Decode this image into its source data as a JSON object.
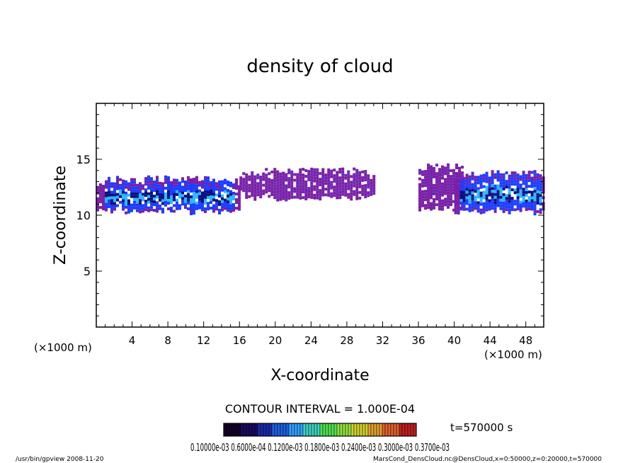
{
  "chart_data": {
    "type": "heatmap",
    "title": "density of cloud",
    "xlabel": "X-coordinate",
    "ylabel": "Z-coordinate",
    "x_unit": "(×1000 m)",
    "y_unit": "(×1000 m)",
    "xlim": [
      0,
      50
    ],
    "ylim": [
      0,
      20
    ],
    "x_ticks": [
      4,
      8,
      12,
      16,
      20,
      24,
      28,
      32,
      36,
      40,
      44,
      48
    ],
    "y_ticks": [
      5,
      10,
      15
    ],
    "contour_interval": "CONTOUR INTERVAL = 1.000E-04",
    "time_label": "t=570000 s",
    "colorbar_labels": "0.10000e-03 0.6000e-04 0.1200e-03 0.1800e-03 0.2400e-03 0.3000e-03 0.3700e-03",
    "colors": {
      "low": "#7a1fa8",
      "mid": "#1e3cff",
      "high": "#2ab8ff",
      "core": "#0a1080"
    },
    "cloud_regions": [
      {
        "x_start": 0,
        "x_end": 16,
        "z_bottom": 10.3,
        "z_top": 13.5,
        "level": "high"
      },
      {
        "x_start": 16,
        "x_end": 31,
        "z_bottom": 11.5,
        "z_top": 14.2,
        "level": "low"
      },
      {
        "x_start": 36,
        "x_end": 41,
        "z_bottom": 10.5,
        "z_top": 14.6,
        "level": "low"
      },
      {
        "x_start": 40,
        "x_end": 50,
        "z_bottom": 10.3,
        "z_top": 14.0,
        "level": "high"
      }
    ]
  },
  "footer": {
    "left": "/usr/bin/gpview   2008-11-20",
    "right": "MarsCond_DensCloud.nc@DensCloud,x=0:50000,z=0:20000,t=570000"
  }
}
